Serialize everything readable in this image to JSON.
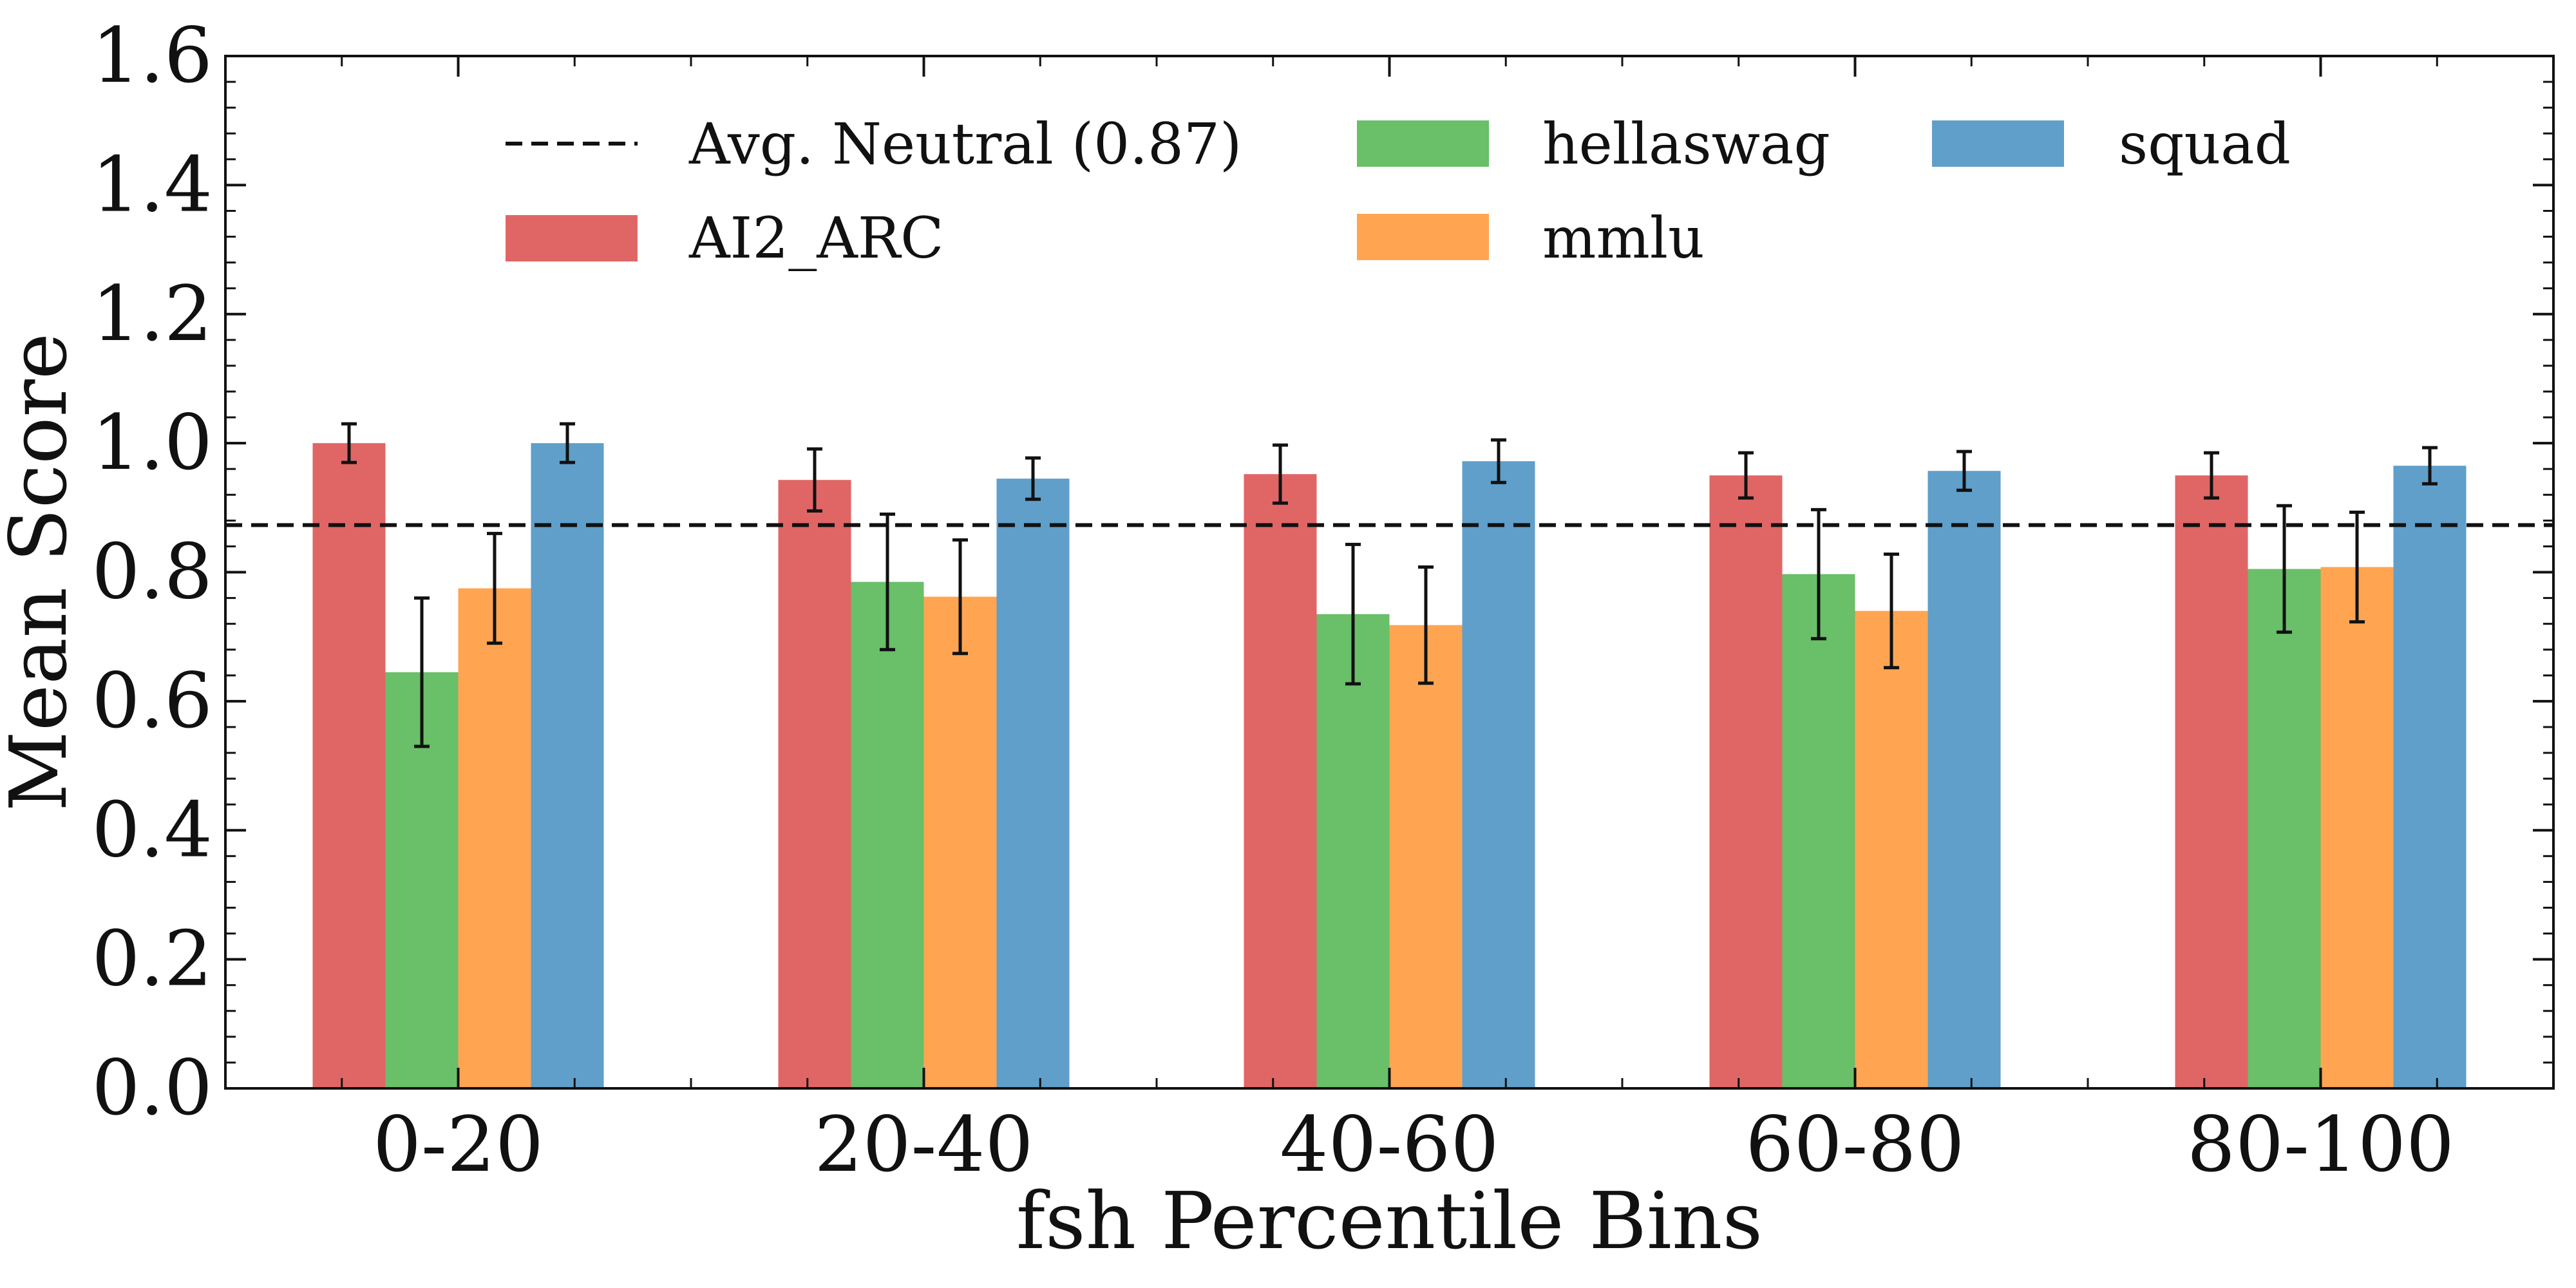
{
  "chart_data": {
    "type": "bar",
    "title": "",
    "xlabel": "fsh Percentile Bins",
    "ylabel": "Mean Score",
    "ylim": [
      0,
      1.6
    ],
    "yticks": [
      "0.0",
      "0.2",
      "0.4",
      "0.6",
      "0.8",
      "1.0",
      "1.2",
      "1.4",
      "1.6"
    ],
    "categories": [
      "0-20",
      "20-40",
      "40-60",
      "60-80",
      "80-100"
    ],
    "series": [
      {
        "name": "AI2_ARC",
        "color": "#e06666",
        "values": [
          1.0,
          0.943,
          0.952,
          0.95,
          0.95
        ],
        "errors": [
          0.03,
          0.048,
          0.045,
          0.035,
          0.035
        ]
      },
      {
        "name": "hellaswag",
        "color": "#6abf69",
        "values": [
          0.645,
          0.785,
          0.735,
          0.797,
          0.805
        ],
        "errors": [
          0.115,
          0.105,
          0.108,
          0.1,
          0.098
        ]
      },
      {
        "name": "mmlu",
        "color": "#ffa552",
        "values": [
          0.775,
          0.762,
          0.718,
          0.74,
          0.808
        ],
        "errors": [
          0.085,
          0.088,
          0.09,
          0.088,
          0.085
        ]
      },
      {
        "name": "squad",
        "color": "#5f9fca",
        "values": [
          1.0,
          0.945,
          0.972,
          0.957,
          0.965
        ],
        "errors": [
          0.03,
          0.032,
          0.033,
          0.03,
          0.028
        ]
      }
    ],
    "reference_line": {
      "label": "Avg. Neutral (0.87)",
      "value": 0.873,
      "style": "dashed",
      "color": "#111111"
    },
    "legend": {
      "placement": "top",
      "entries": [
        "Avg. Neutral (0.87)",
        "AI2_ARC",
        "hellaswag",
        "mmlu",
        "squad"
      ]
    },
    "grid": false
  }
}
